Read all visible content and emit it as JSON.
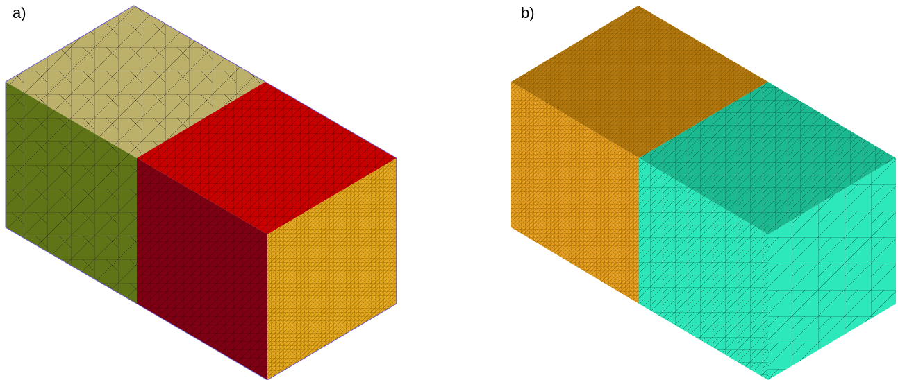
{
  "panels": [
    {
      "label": "a)",
      "faces": [
        {
          "name": "left-block-top",
          "color": "#bdb06b",
          "mesh": "coarse"
        },
        {
          "name": "left-block-front",
          "color": "#5f7417",
          "mesh": "coarse"
        },
        {
          "name": "right-block-top",
          "color": "#c90000",
          "mesh": "graded"
        },
        {
          "name": "right-block-front",
          "color": "#7f0013",
          "mesh": "graded"
        },
        {
          "name": "right-block-side",
          "color": "#e2a418",
          "mesh": "fine"
        }
      ],
      "edge_color": "#6a5acd"
    },
    {
      "label": "b)",
      "faces": [
        {
          "name": "left-block-top",
          "color": "#b5780c",
          "mesh": "fine"
        },
        {
          "name": "left-block-front",
          "color": "#e39b1c",
          "mesh": "fine"
        },
        {
          "name": "right-block-top",
          "color": "#1ab98f",
          "mesh": "graded"
        },
        {
          "name": "right-block-front",
          "color": "#2ae6b8",
          "mesh": "graded"
        },
        {
          "name": "right-block-side",
          "color": "#2de8bb",
          "mesh": "coarse"
        }
      ],
      "edge_color": "#000000"
    }
  ]
}
